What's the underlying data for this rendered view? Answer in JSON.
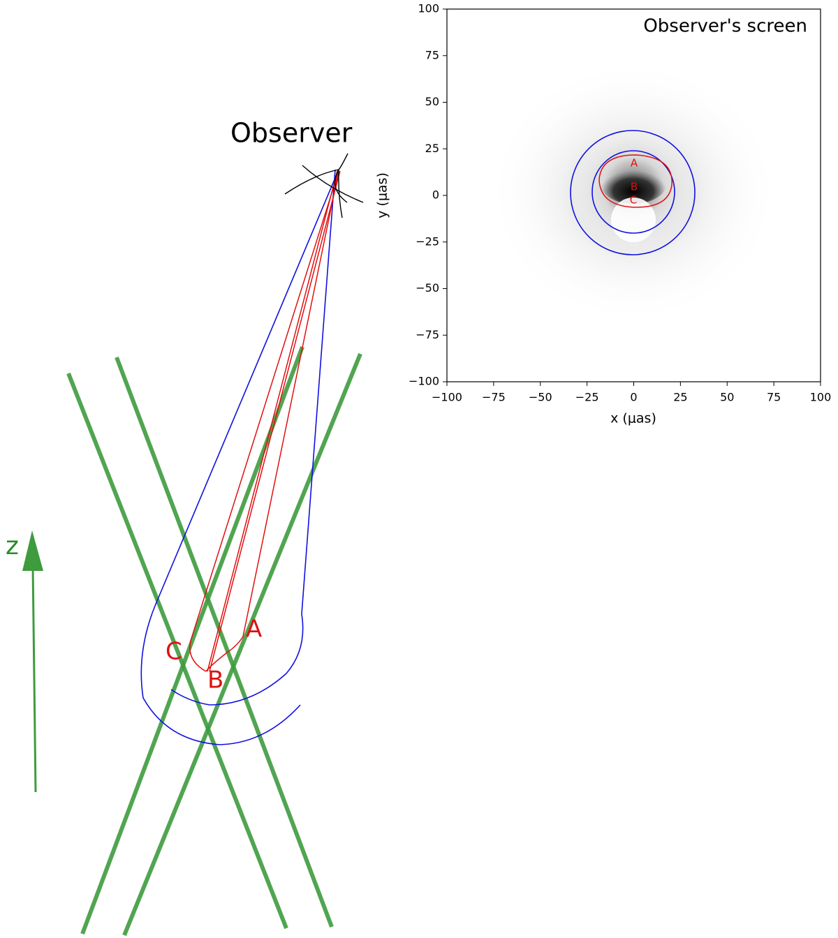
{
  "diagram": {
    "observer_label": "Observer",
    "z_label": "z",
    "ray_labels": [
      "A",
      "B",
      "C"
    ]
  },
  "chart_data": {
    "type": "image",
    "title": "Observer's screen",
    "xlabel": "x (μas)",
    "ylabel": "y (μas)",
    "xlim": [
      -100,
      100
    ],
    "ylim": [
      -100,
      100
    ],
    "xticks": [
      {
        "value": -100,
        "label": "−100"
      },
      {
        "value": -75,
        "label": "−75"
      },
      {
        "value": -50,
        "label": "−50"
      },
      {
        "value": -25,
        "label": "−25"
      },
      0,
      25,
      50,
      75,
      100
    ],
    "yticks": [
      {
        "value": -100,
        "label": "−100"
      },
      {
        "value": -75,
        "label": "−75"
      },
      {
        "value": -50,
        "label": "−50"
      },
      {
        "value": -25,
        "label": "−25"
      },
      0,
      25,
      50,
      75,
      100
    ],
    "annotations": [
      "A",
      "B",
      "C"
    ]
  }
}
